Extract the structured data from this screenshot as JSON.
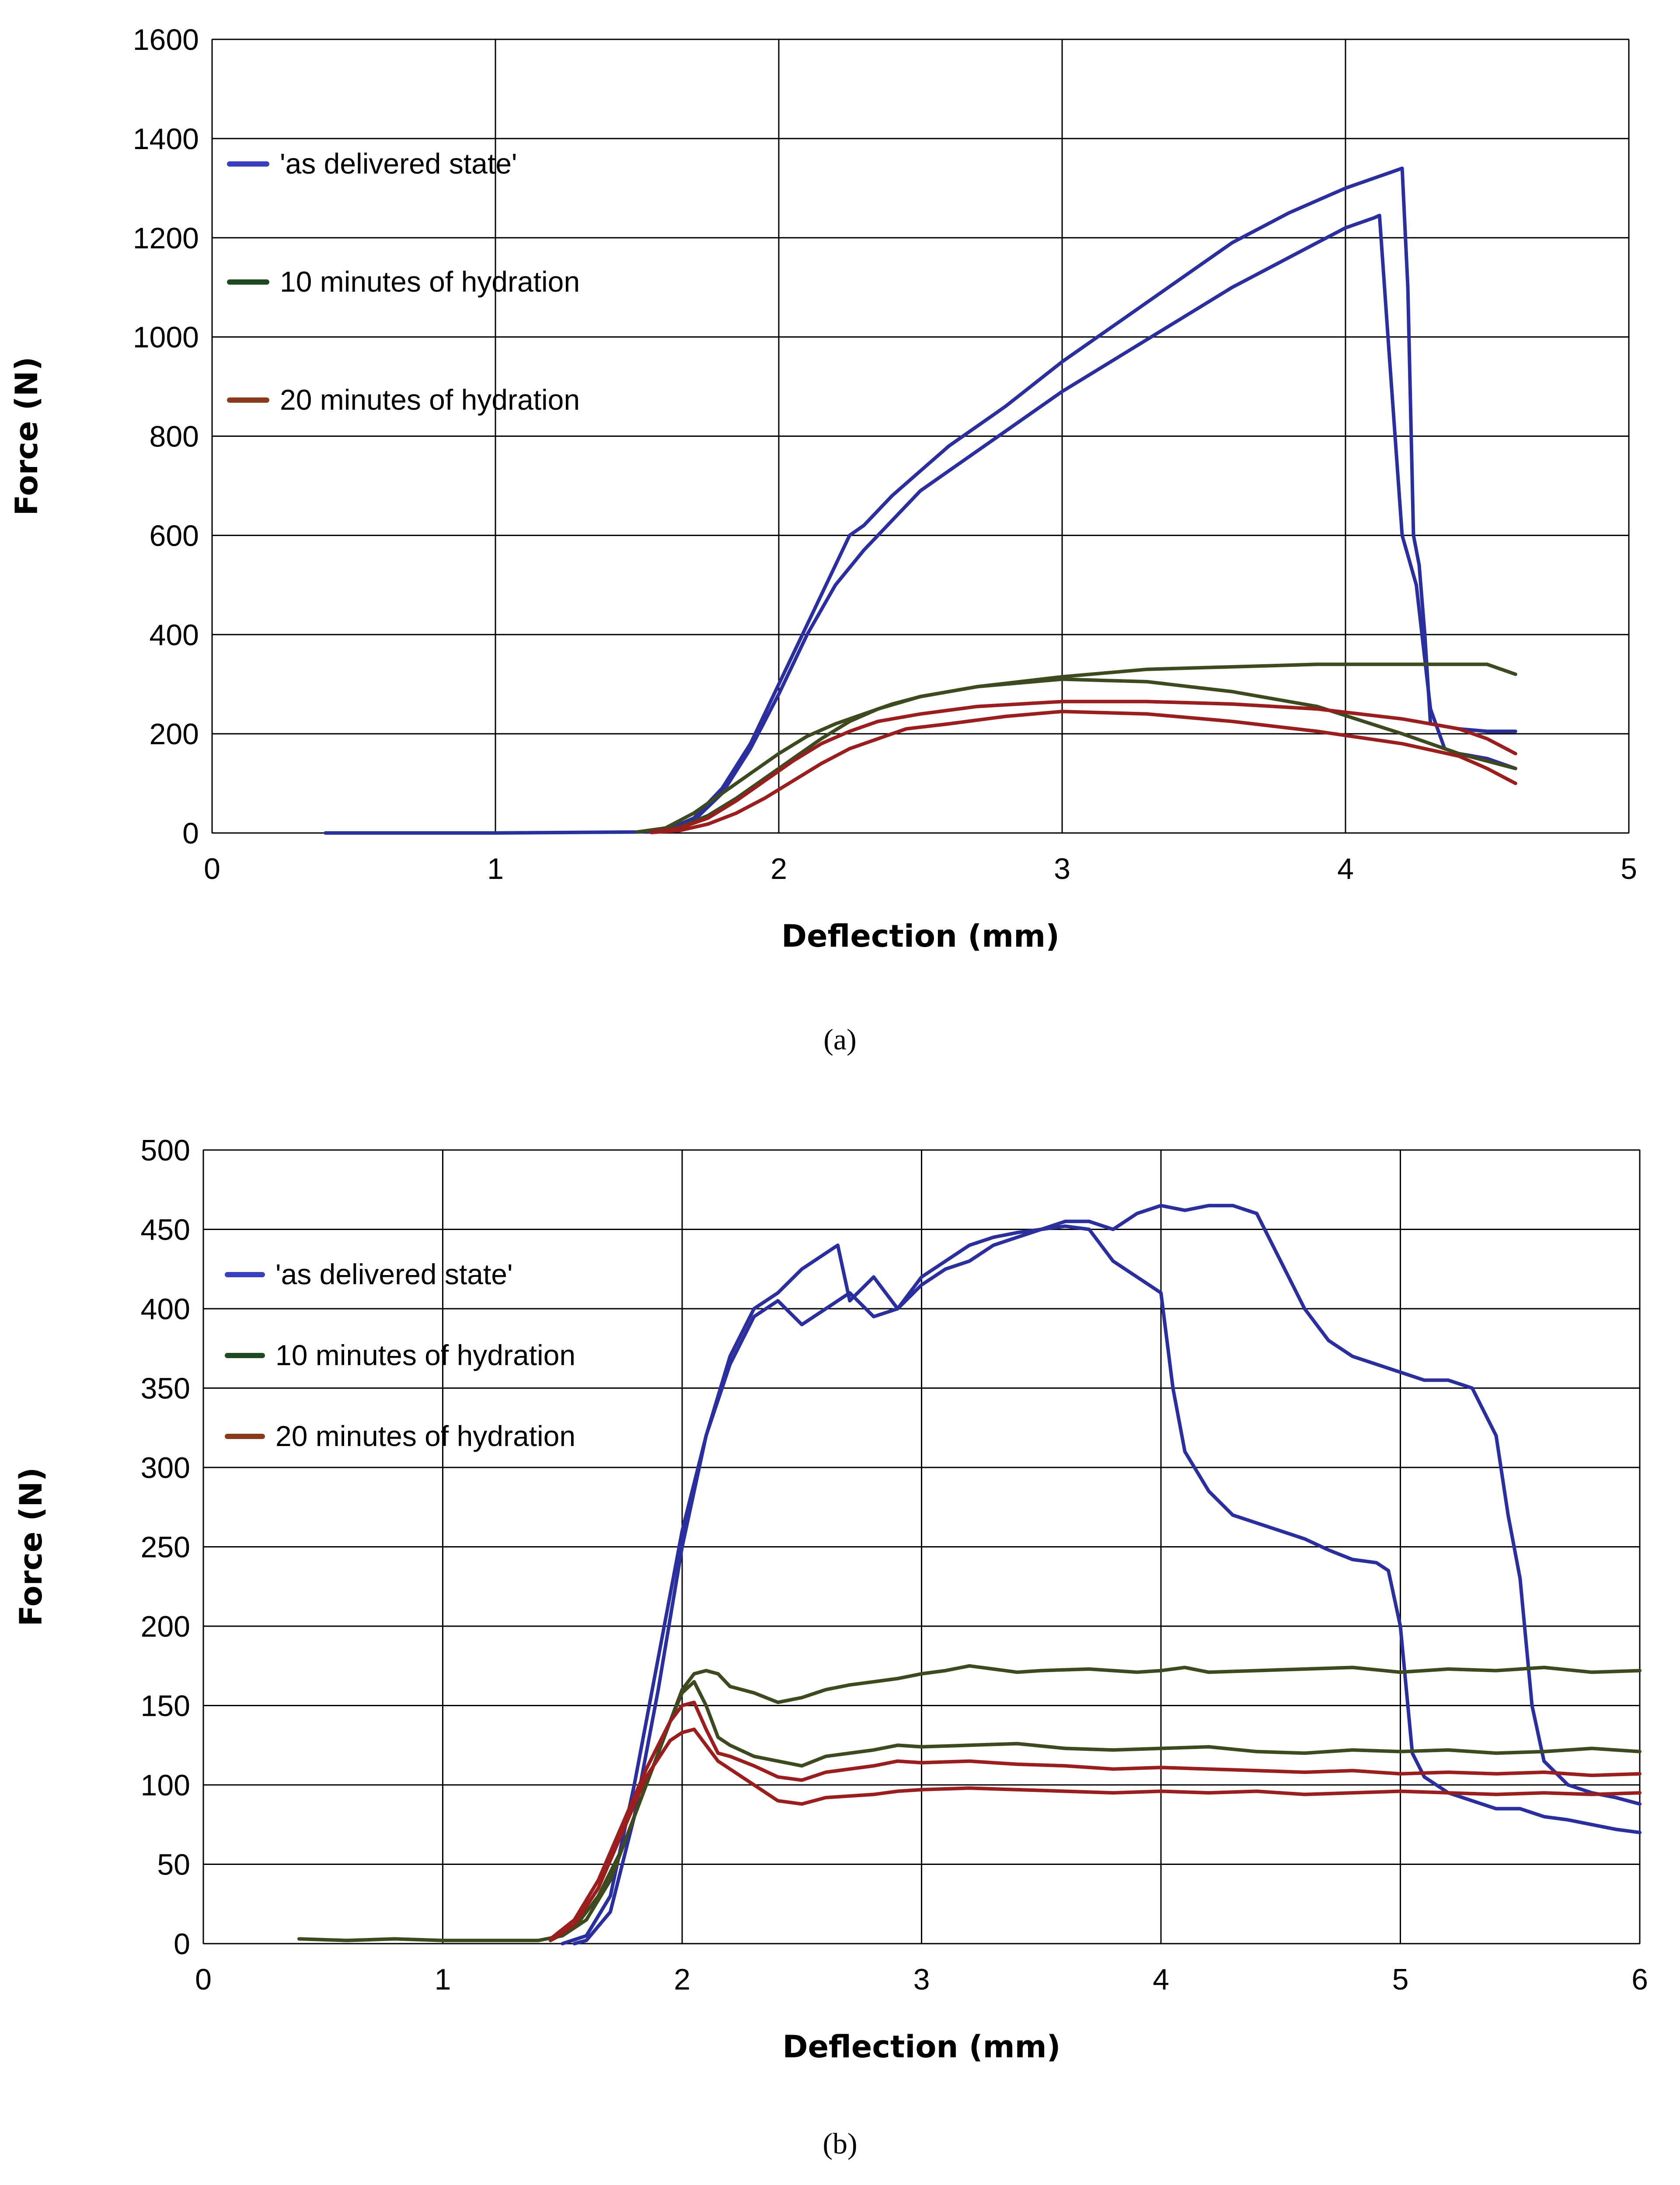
{
  "chart_data": [
    {
      "type": "line",
      "title": "",
      "caption": "(a)",
      "xlabel": "Deflection (mm)",
      "ylabel": "Force (N)",
      "xlim": [
        0,
        5
      ],
      "ylim": [
        0,
        1600
      ],
      "xticks": [
        0,
        1,
        2,
        3,
        4,
        5
      ],
      "yticks": [
        0,
        200,
        400,
        600,
        800,
        1000,
        1200,
        1400,
        1600
      ],
      "legend_position": "top-left",
      "legend": [
        {
          "label": "'as delivered state'",
          "color": "#3a3fbf"
        },
        {
          "label": "10 minutes of hydration",
          "color": "#1f4a1f"
        },
        {
          "label": "20 minutes of hydration",
          "color": "#8b3a1a"
        }
      ],
      "series": [
        {
          "name": "'as delivered state'",
          "color": "#2b2f9e",
          "x": [
            0.4,
            1.0,
            1.5,
            1.6,
            1.7,
            1.8,
            1.9,
            2.0,
            2.1,
            2.2,
            2.25,
            2.3,
            2.4,
            2.5,
            2.6,
            2.8,
            3.0,
            3.2,
            3.4,
            3.6,
            3.8,
            4.0,
            4.1,
            4.15,
            4.2,
            4.22,
            4.24,
            4.26,
            4.28,
            4.3,
            4.4,
            4.5,
            4.6
          ],
          "y": [
            0,
            0,
            2,
            5,
            30,
            90,
            180,
            300,
            420,
            540,
            600,
            620,
            680,
            730,
            780,
            860,
            950,
            1030,
            1110,
            1190,
            1250,
            1300,
            1320,
            1330,
            1340,
            1100,
            600,
            540,
            400,
            220,
            210,
            205,
            205
          ]
        },
        {
          "name": "'as delivered state'",
          "color": "#2b2f9e",
          "x": [
            1.5,
            1.6,
            1.7,
            1.8,
            1.9,
            2.0,
            2.1,
            2.2,
            2.3,
            2.4,
            2.5,
            2.6,
            2.8,
            3.0,
            3.2,
            3.4,
            3.6,
            3.8,
            4.0,
            4.1,
            4.12,
            4.15,
            4.2,
            4.25,
            4.3,
            4.35,
            4.4,
            4.5,
            4.6
          ],
          "y": [
            2,
            5,
            25,
            80,
            170,
            280,
            400,
            500,
            570,
            630,
            690,
            730,
            810,
            890,
            960,
            1030,
            1100,
            1160,
            1220,
            1240,
            1245,
            1000,
            600,
            500,
            250,
            170,
            160,
            150,
            130
          ]
        },
        {
          "name": "10 minutes of hydration",
          "color": "#3d4a1f",
          "x": [
            1.5,
            1.6,
            1.7,
            1.8,
            1.9,
            2.0,
            2.1,
            2.2,
            2.3,
            2.4,
            2.5,
            2.7,
            3.0,
            3.3,
            3.6,
            3.9,
            4.2,
            4.4,
            4.5,
            4.55,
            4.6
          ],
          "y": [
            2,
            10,
            40,
            80,
            120,
            160,
            195,
            220,
            240,
            260,
            275,
            295,
            315,
            330,
            335,
            340,
            340,
            340,
            340,
            330,
            320
          ]
        },
        {
          "name": "10 minutes of hydration",
          "color": "#3d4a1f",
          "x": [
            1.55,
            1.65,
            1.75,
            1.85,
            1.95,
            2.05,
            2.15,
            2.25,
            2.35,
            2.5,
            2.7,
            3.0,
            3.3,
            3.6,
            3.9,
            4.2,
            4.4,
            4.6
          ],
          "y": [
            2,
            12,
            35,
            70,
            110,
            150,
            190,
            225,
            250,
            275,
            295,
            310,
            305,
            285,
            255,
            200,
            160,
            130
          ]
        },
        {
          "name": "20 minutes of hydration",
          "color": "#9b1e1e",
          "x": [
            1.55,
            1.65,
            1.75,
            1.85,
            1.95,
            2.05,
            2.15,
            2.25,
            2.35,
            2.5,
            2.7,
            3.0,
            3.3,
            3.6,
            3.9,
            4.2,
            4.4,
            4.5,
            4.6
          ],
          "y": [
            2,
            10,
            30,
            65,
            105,
            145,
            180,
            205,
            225,
            240,
            255,
            265,
            265,
            260,
            250,
            230,
            210,
            190,
            160
          ]
        },
        {
          "name": "20 minutes of hydration",
          "color": "#9b1e1e",
          "x": [
            1.55,
            1.65,
            1.75,
            1.85,
            1.95,
            2.05,
            2.15,
            2.25,
            2.35,
            2.45,
            2.6,
            2.8,
            3.0,
            3.3,
            3.6,
            3.9,
            4.2,
            4.4,
            4.5,
            4.6
          ],
          "y": [
            1,
            5,
            18,
            40,
            70,
            105,
            140,
            170,
            190,
            210,
            220,
            235,
            245,
            240,
            225,
            205,
            180,
            155,
            130,
            100
          ]
        }
      ]
    },
    {
      "type": "line",
      "title": "",
      "caption": "(b)",
      "xlabel": "Deflection (mm)",
      "ylabel": "Force (N)",
      "xlim": [
        0,
        6
      ],
      "ylim": [
        0,
        500
      ],
      "xticks": [
        0,
        1,
        2,
        3,
        4,
        5,
        6
      ],
      "yticks": [
        0,
        50,
        100,
        150,
        200,
        250,
        300,
        350,
        400,
        450,
        500
      ],
      "legend_position": "top-left",
      "legend": [
        {
          "label": "'as delivered state'",
          "color": "#3a3fbf"
        },
        {
          "label": "10 minutes of hydration",
          "color": "#1f4a1f"
        },
        {
          "label": "20 minutes of hydration",
          "color": "#8b3a1a"
        }
      ],
      "series": [
        {
          "name": "'as delivered state'",
          "color": "#2b2f9e",
          "x": [
            1.55,
            1.6,
            1.7,
            1.8,
            1.9,
            2.0,
            2.1,
            2.2,
            2.3,
            2.4,
            2.5,
            2.6,
            2.65,
            2.7,
            2.8,
            2.9,
            3.0,
            3.1,
            3.2,
            3.3,
            3.4,
            3.5,
            3.6,
            3.7,
            3.8,
            3.9,
            4.0,
            4.1,
            4.2,
            4.3,
            4.4,
            4.5,
            4.6,
            4.7,
            4.8,
            4.9,
            5.0,
            5.1,
            5.2,
            5.3,
            5.4,
            5.45,
            5.5,
            5.55,
            5.6,
            5.7,
            5.8,
            5.9,
            6.0
          ],
          "y": [
            0,
            2,
            20,
            80,
            160,
            250,
            320,
            370,
            400,
            410,
            425,
            435,
            440,
            405,
            420,
            400,
            415,
            425,
            430,
            440,
            445,
            450,
            455,
            455,
            450,
            460,
            465,
            462,
            465,
            465,
            460,
            430,
            400,
            380,
            370,
            365,
            360,
            355,
            355,
            350,
            320,
            270,
            230,
            150,
            115,
            100,
            95,
            92,
            88
          ]
        },
        {
          "name": "'as delivered state'",
          "color": "#2b2f9e",
          "x": [
            1.5,
            1.6,
            1.7,
            1.8,
            1.9,
            2.0,
            2.1,
            2.2,
            2.3,
            2.4,
            2.5,
            2.6,
            2.7,
            2.8,
            2.9,
            3.0,
            3.1,
            3.2,
            3.3,
            3.4,
            3.5,
            3.6,
            3.7,
            3.8,
            3.9,
            4.0,
            4.05,
            4.1,
            4.2,
            4.3,
            4.4,
            4.5,
            4.6,
            4.7,
            4.8,
            4.9,
            4.95,
            5.0,
            5.05,
            5.1,
            5.2,
            5.3,
            5.4,
            5.5,
            5.6,
            5.7,
            5.8,
            5.9,
            6.0
          ],
          "y": [
            0,
            5,
            30,
            100,
            180,
            260,
            320,
            365,
            395,
            405,
            390,
            400,
            410,
            395,
            400,
            420,
            430,
            440,
            445,
            448,
            450,
            452,
            450,
            430,
            420,
            410,
            350,
            310,
            285,
            270,
            265,
            260,
            255,
            248,
            242,
            240,
            235,
            200,
            120,
            105,
            95,
            90,
            85,
            85,
            80,
            78,
            75,
            72,
            70
          ]
        },
        {
          "name": "10 minutes of hydration",
          "color": "#3d4a1f",
          "x": [
            0.4,
            0.6,
            0.8,
            1.0,
            1.2,
            1.4,
            1.5,
            1.6,
            1.7,
            1.8,
            1.9,
            2.0,
            2.05,
            2.1,
            2.15,
            2.2,
            2.3,
            2.4,
            2.5,
            2.6,
            2.7,
            2.8,
            2.9,
            3.0,
            3.1,
            3.2,
            3.3,
            3.4,
            3.5,
            3.7,
            3.9,
            4.0,
            4.1,
            4.2,
            4.4,
            4.6,
            4.8,
            5.0,
            5.2,
            5.4,
            5.6,
            5.8,
            6.0
          ],
          "y": [
            3,
            2,
            3,
            2,
            2,
            2,
            5,
            15,
            40,
            80,
            120,
            160,
            170,
            172,
            170,
            162,
            158,
            152,
            155,
            160,
            163,
            165,
            167,
            170,
            172,
            175,
            173,
            171,
            172,
            173,
            171,
            172,
            174,
            171,
            172,
            173,
            174,
            171,
            173,
            172,
            174,
            171,
            172
          ]
        },
        {
          "name": "10 minutes of hydration",
          "color": "#3d4a1f",
          "x": [
            1.45,
            1.55,
            1.65,
            1.75,
            1.85,
            1.95,
            2.0,
            2.05,
            2.1,
            2.15,
            2.2,
            2.3,
            2.4,
            2.5,
            2.6,
            2.7,
            2.8,
            2.9,
            3.0,
            3.2,
            3.4,
            3.6,
            3.8,
            4.0,
            4.2,
            4.4,
            4.6,
            4.8,
            5.0,
            5.2,
            5.4,
            5.6,
            5.8,
            6.0
          ],
          "y": [
            2,
            10,
            30,
            60,
            100,
            140,
            158,
            165,
            150,
            130,
            125,
            118,
            115,
            112,
            118,
            120,
            122,
            125,
            124,
            125,
            126,
            123,
            122,
            123,
            124,
            121,
            120,
            122,
            121,
            122,
            120,
            121,
            123,
            121
          ]
        },
        {
          "name": "20 minutes of hydration",
          "color": "#9b1e1e",
          "x": [
            1.45,
            1.55,
            1.65,
            1.75,
            1.85,
            1.95,
            2.0,
            2.05,
            2.1,
            2.15,
            2.2,
            2.3,
            2.4,
            2.5,
            2.6,
            2.7,
            2.8,
            2.9,
            3.0,
            3.2,
            3.4,
            3.6,
            3.8,
            4.0,
            4.2,
            4.4,
            4.6,
            4.8,
            5.0,
            5.2,
            5.4,
            5.6,
            5.8,
            6.0
          ],
          "y": [
            3,
            15,
            40,
            75,
            110,
            140,
            150,
            152,
            135,
            120,
            118,
            112,
            105,
            103,
            108,
            110,
            112,
            115,
            114,
            115,
            113,
            112,
            110,
            111,
            110,
            109,
            108,
            109,
            107,
            108,
            107,
            108,
            106,
            107
          ]
        },
        {
          "name": "20 minutes of hydration",
          "color": "#9b1e1e",
          "x": [
            1.45,
            1.55,
            1.65,
            1.75,
            1.85,
            1.95,
            2.0,
            2.05,
            2.1,
            2.15,
            2.2,
            2.3,
            2.4,
            2.5,
            2.6,
            2.7,
            2.8,
            2.9,
            3.0,
            3.2,
            3.4,
            3.6,
            3.8,
            4.0,
            4.2,
            4.4,
            4.6,
            4.8,
            5.0,
            5.2,
            5.4,
            5.6,
            5.8,
            6.0
          ],
          "y": [
            2,
            12,
            35,
            70,
            105,
            128,
            133,
            135,
            125,
            115,
            110,
            100,
            90,
            88,
            92,
            93,
            94,
            96,
            97,
            98,
            97,
            96,
            95,
            96,
            95,
            96,
            94,
            95,
            96,
            95,
            94,
            95,
            94,
            95
          ]
        }
      ]
    }
  ]
}
